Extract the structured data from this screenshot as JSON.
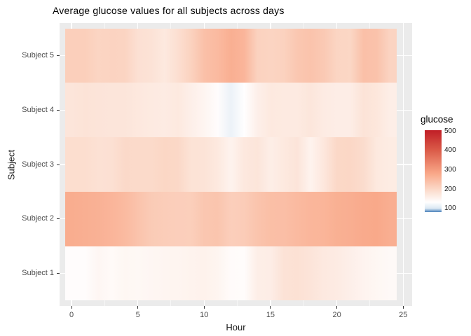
{
  "title": "Average glucose values for all subjects across days",
  "x_axis": {
    "title": "Hour",
    "ticks": [
      0,
      5,
      10,
      15,
      20,
      25
    ],
    "minor_ticks": [
      2.5,
      7.5,
      12.5,
      17.5,
      22.5
    ],
    "range": [
      0,
      25
    ]
  },
  "y_axis": {
    "title": "Subject",
    "categories_top_to_bottom": [
      "Subject 5",
      "Subject 4",
      "Subject 3",
      "Subject 2",
      "Subject 1"
    ]
  },
  "legend": {
    "title": "glucose",
    "ticks": [
      500,
      400,
      300,
      200,
      100
    ],
    "top_value": 505,
    "bottom_value": 81
  },
  "chart_data": {
    "type": "heatmap",
    "title": "Average glucose values for all subjects across days",
    "xlabel": "Hour",
    "ylabel": "Subject",
    "x_hours": [
      0,
      1,
      2,
      3,
      4,
      5,
      6,
      7,
      8,
      9,
      10,
      11,
      12,
      13,
      14,
      15,
      16,
      17,
      18,
      19,
      20,
      21,
      22,
      23,
      24
    ],
    "categories": [
      "Subject 5",
      "Subject 4",
      "Subject 3",
      "Subject 2",
      "Subject 1"
    ],
    "series": [
      {
        "name": "Subject 5",
        "values": [
          215,
          215,
          205,
          208,
          207,
          185,
          182,
          170,
          188,
          210,
          240,
          250,
          268,
          258,
          210,
          206,
          210,
          228,
          235,
          225,
          205,
          202,
          240,
          236,
          207
        ]
      },
      {
        "name": "Subject 4",
        "values": [
          176,
          180,
          178,
          176,
          176,
          172,
          168,
          166,
          170,
          158,
          148,
          135,
          115,
          132,
          158,
          170,
          168,
          168,
          175,
          166,
          162,
          162,
          180,
          174,
          161
        ]
      },
      {
        "name": "Subject 3",
        "values": [
          190,
          190,
          184,
          185,
          198,
          196,
          196,
          202,
          200,
          181,
          180,
          170,
          152,
          172,
          176,
          160,
          170,
          178,
          152,
          173,
          200,
          201,
          193,
          170,
          165
        ]
      },
      {
        "name": "Subject 2",
        "values": [
          272,
          268,
          265,
          258,
          250,
          235,
          222,
          218,
          216,
          215,
          230,
          232,
          216,
          220,
          233,
          242,
          243,
          250,
          257,
          259,
          267,
          270,
          276,
          279,
          270
        ]
      },
      {
        "name": "Subject 1",
        "values": [
          135,
          135,
          146,
          140,
          145,
          143,
          146,
          148,
          149,
          152,
          154,
          149,
          137,
          136,
          160,
          162,
          182,
          184,
          178,
          169,
          166,
          158,
          151,
          145,
          141
        ]
      }
    ],
    "legend_title": "glucose",
    "legend_ticks": [
      500,
      400,
      300,
      200,
      100
    ],
    "color_scale": {
      "type": "diverging",
      "stops": [
        {
          "value": 81,
          "color": "#4a81bb"
        },
        {
          "value": 100,
          "color": "#dbe8f3"
        },
        {
          "value": 132,
          "color": "#fffefe"
        },
        {
          "value": 200,
          "color": "#fbd8c7"
        },
        {
          "value": 280,
          "color": "#f9a889"
        },
        {
          "value": 400,
          "color": "#db5c49"
        },
        {
          "value": 505,
          "color": "#c01e26"
        }
      ]
    },
    "panel_background": "#ebebeb",
    "gridline_color": "#ffffff"
  }
}
